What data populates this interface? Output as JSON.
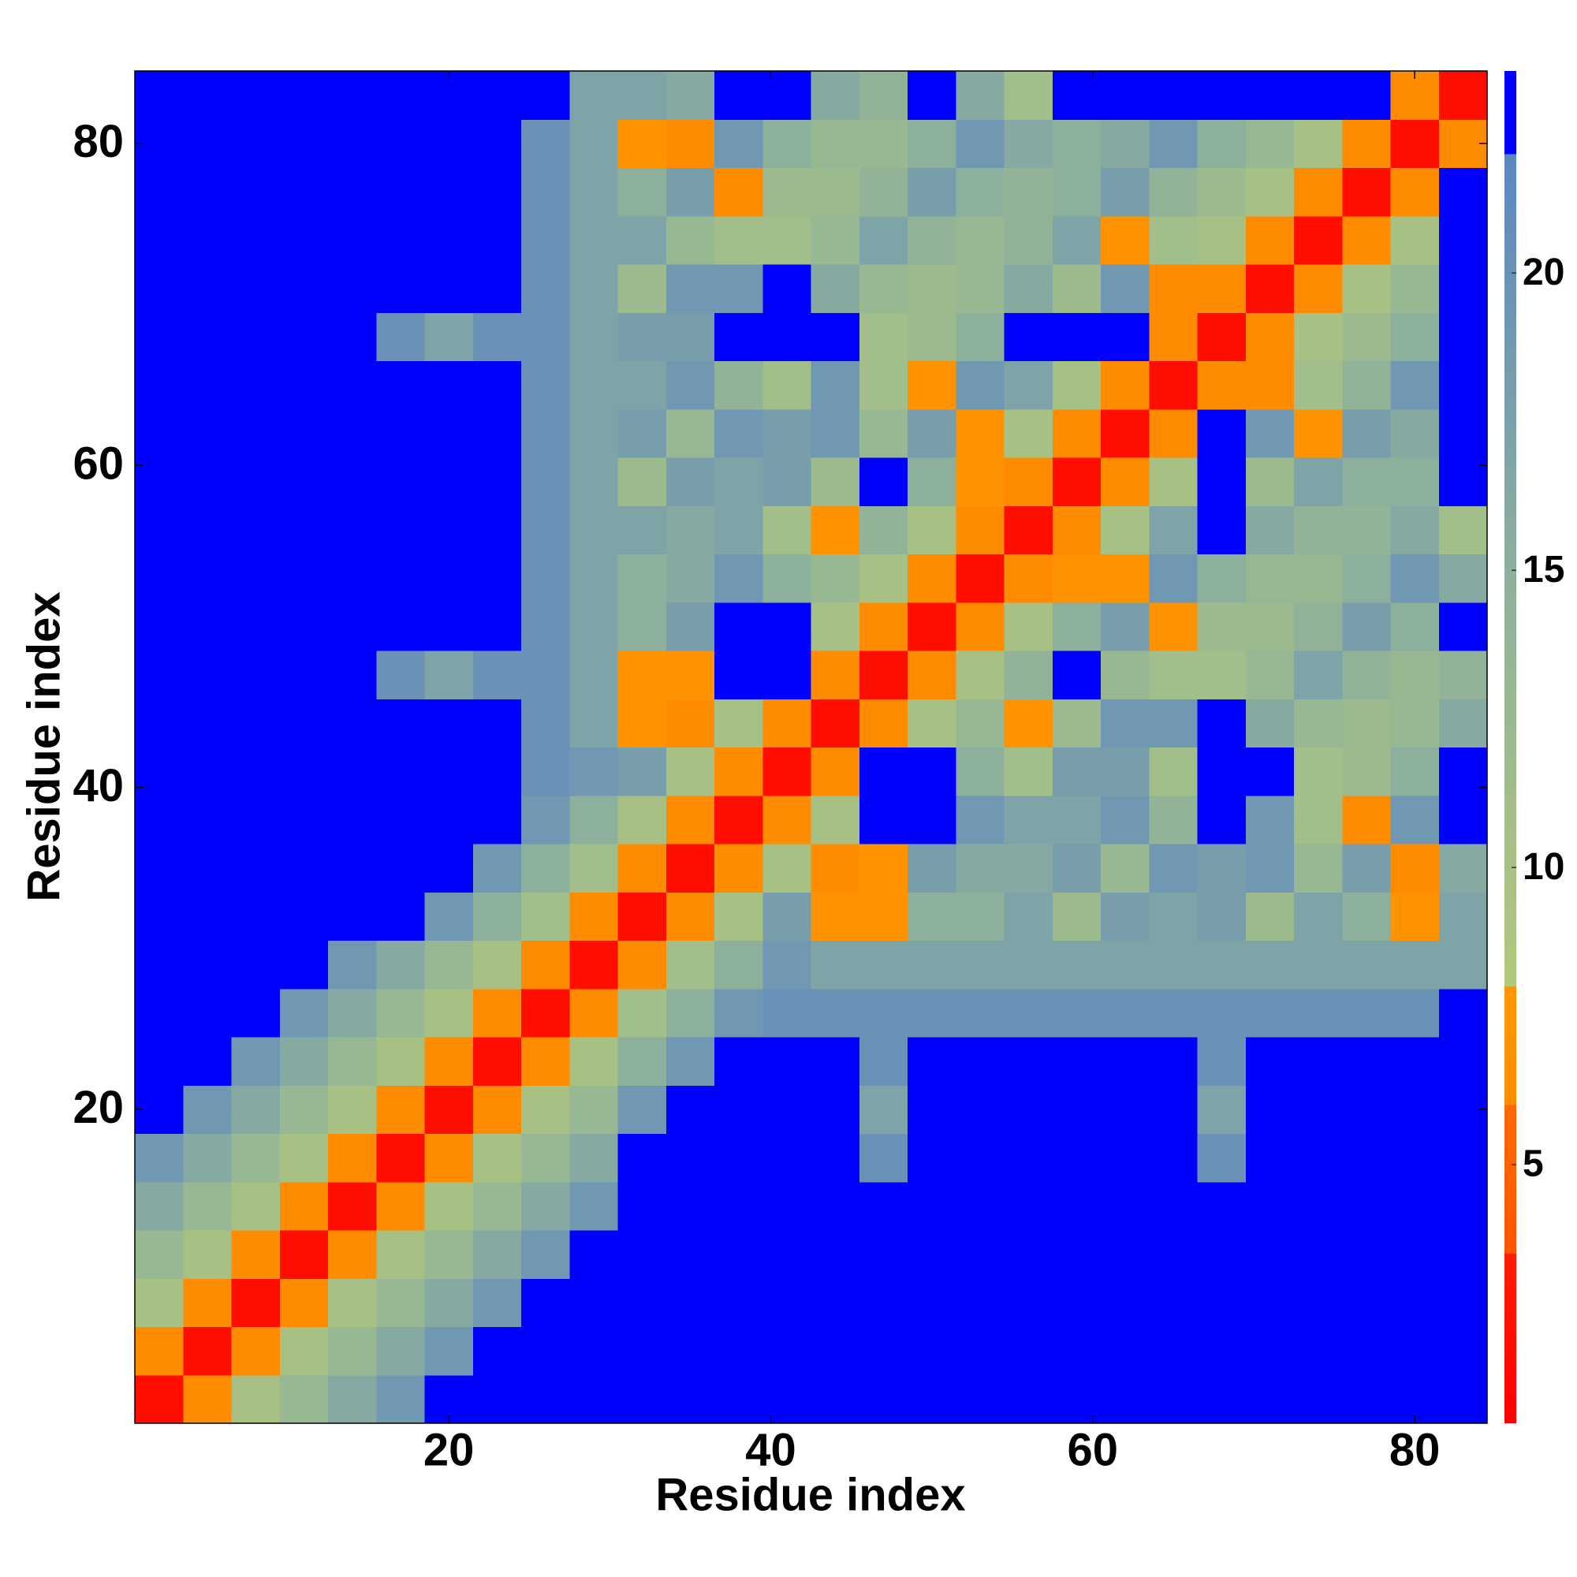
{
  "chart_data": {
    "type": "heatmap",
    "xlabel": "Residue index",
    "ylabel": "Residue index",
    "x": [
      2,
      5,
      8,
      11,
      14,
      17,
      20,
      23,
      26,
      29,
      32,
      35,
      38,
      41,
      44,
      47,
      50,
      53,
      56,
      59,
      62,
      65,
      68,
      71,
      74,
      77,
      80,
      83
    ],
    "y": [
      2,
      5,
      8,
      11,
      14,
      17,
      20,
      23,
      26,
      29,
      32,
      35,
      38,
      41,
      44,
      47,
      50,
      53,
      56,
      59,
      62,
      65,
      68,
      71,
      74,
      77,
      80,
      83
    ],
    "z": [
      [
        2,
        6,
        10,
        13,
        16,
        19,
        23,
        23,
        23,
        23,
        23,
        23,
        23,
        23,
        23,
        23,
        23,
        23,
        23,
        23,
        23,
        23,
        23,
        23,
        23,
        23,
        23,
        23
      ],
      [
        6,
        2,
        6,
        10,
        13,
        16,
        19,
        23,
        23,
        23,
        23,
        23,
        23,
        23,
        23,
        23,
        23,
        23,
        23,
        23,
        23,
        23,
        23,
        23,
        23,
        23,
        23,
        23
      ],
      [
        10,
        6,
        2,
        6,
        10,
        13,
        16,
        19,
        23,
        23,
        23,
        23,
        23,
        23,
        23,
        23,
        23,
        23,
        23,
        23,
        23,
        23,
        23,
        23,
        23,
        23,
        23,
        23
      ],
      [
        13,
        10,
        6,
        2,
        6,
        10,
        13,
        16,
        19,
        23,
        23,
        23,
        23,
        23,
        23,
        23,
        23,
        23,
        23,
        23,
        23,
        23,
        23,
        23,
        23,
        23,
        23,
        23
      ],
      [
        16,
        13,
        10,
        6,
        2,
        6,
        10,
        13,
        16,
        19,
        23,
        23,
        23,
        23,
        23,
        23,
        23,
        23,
        23,
        23,
        23,
        23,
        23,
        23,
        23,
        23,
        23,
        23
      ],
      [
        19,
        16,
        13,
        10,
        6,
        2,
        6,
        10,
        13,
        16,
        23,
        23,
        23,
        23,
        23,
        20,
        23,
        23,
        23,
        23,
        23,
        23,
        20,
        23,
        23,
        23,
        23,
        23
      ],
      [
        23,
        19,
        16,
        13,
        10,
        6,
        2,
        6,
        10,
        13,
        19,
        23,
        23,
        23,
        23,
        17,
        23,
        23,
        23,
        23,
        23,
        23,
        17,
        23,
        23,
        23,
        23,
        23
      ],
      [
        23,
        23,
        19,
        16,
        13,
        10,
        6,
        2,
        6,
        10,
        15,
        19,
        23,
        23,
        23,
        20,
        23,
        23,
        23,
        23,
        23,
        23,
        20,
        23,
        23,
        23,
        23,
        23
      ],
      [
        23,
        23,
        23,
        19,
        16,
        13,
        10,
        6,
        2,
        6,
        11,
        15,
        19,
        20,
        20,
        20,
        20,
        20,
        20,
        20,
        20,
        20,
        20,
        20,
        20,
        20,
        20,
        23
      ],
      [
        23,
        23,
        23,
        23,
        19,
        16,
        13,
        10,
        6,
        2,
        6,
        11,
        15,
        19,
        17,
        17,
        17,
        17,
        17,
        17,
        17,
        17,
        17,
        17,
        17,
        17,
        17,
        17
      ],
      [
        23,
        23,
        23,
        23,
        23,
        23,
        19,
        15,
        11,
        6,
        2,
        6,
        10,
        18,
        7,
        7,
        15,
        15,
        17,
        12,
        18,
        17,
        18,
        12,
        17,
        15,
        7,
        17
      ],
      [
        23,
        23,
        23,
        23,
        23,
        23,
        23,
        19,
        15,
        11,
        6,
        2,
        6,
        10,
        6,
        7,
        18,
        16,
        16,
        18,
        13,
        19,
        18,
        19,
        13,
        18,
        6,
        16
      ],
      [
        23,
        23,
        23,
        23,
        23,
        23,
        23,
        23,
        19,
        15,
        10,
        6,
        2,
        6,
        10,
        23,
        23,
        19,
        17,
        17,
        19,
        14,
        23,
        19,
        11,
        6,
        19,
        23
      ],
      [
        23,
        23,
        23,
        23,
        23,
        23,
        23,
        23,
        20,
        19,
        18,
        10,
        6,
        2,
        6,
        23,
        23,
        15,
        11,
        18,
        18,
        11,
        23,
        23,
        11,
        12,
        15,
        23
      ],
      [
        23,
        23,
        23,
        23,
        23,
        23,
        23,
        23,
        20,
        17,
        7,
        6,
        10,
        6,
        2,
        6,
        10,
        13,
        7,
        12,
        19,
        19,
        23,
        16,
        13,
        12,
        13,
        16
      ],
      [
        23,
        23,
        23,
        23,
        23,
        20,
        17,
        20,
        20,
        17,
        7,
        7,
        23,
        23,
        6,
        2,
        6,
        10,
        14,
        23,
        13,
        11,
        11,
        13,
        17,
        14,
        13,
        14
      ],
      [
        23,
        23,
        23,
        23,
        23,
        23,
        23,
        23,
        20,
        17,
        15,
        18,
        23,
        23,
        10,
        6,
        2,
        6,
        10,
        15,
        18,
        7,
        12,
        12,
        14,
        18,
        15,
        23
      ],
      [
        23,
        23,
        23,
        23,
        23,
        23,
        23,
        23,
        20,
        17,
        15,
        16,
        19,
        15,
        13,
        10,
        6,
        2,
        6,
        7,
        7,
        19,
        15,
        13,
        13,
        15,
        19,
        16
      ],
      [
        23,
        23,
        23,
        23,
        23,
        23,
        23,
        23,
        20,
        17,
        17,
        16,
        17,
        11,
        7,
        14,
        10,
        6,
        2,
        6,
        10,
        17,
        23,
        16,
        14,
        14,
        16,
        11
      ],
      [
        23,
        23,
        23,
        23,
        23,
        23,
        23,
        23,
        20,
        17,
        12,
        18,
        17,
        18,
        12,
        23,
        15,
        7,
        6,
        2,
        6,
        10,
        23,
        12,
        17,
        15,
        15,
        23
      ],
      [
        23,
        23,
        23,
        23,
        23,
        23,
        23,
        23,
        20,
        17,
        18,
        13,
        19,
        18,
        19,
        13,
        18,
        7,
        10,
        6,
        2,
        6,
        23,
        19,
        7,
        18,
        16,
        23
      ],
      [
        23,
        23,
        23,
        23,
        23,
        23,
        23,
        23,
        20,
        17,
        17,
        19,
        14,
        11,
        19,
        11,
        7,
        19,
        17,
        10,
        6,
        2,
        6,
        6,
        11,
        14,
        19,
        23
      ],
      [
        23,
        23,
        23,
        23,
        23,
        20,
        17,
        20,
        20,
        17,
        18,
        18,
        23,
        23,
        23,
        11,
        12,
        15,
        23,
        23,
        23,
        6,
        2,
        6,
        10,
        12,
        15,
        23
      ],
      [
        23,
        23,
        23,
        23,
        23,
        23,
        23,
        23,
        20,
        17,
        12,
        19,
        19,
        23,
        16,
        13,
        12,
        13,
        16,
        12,
        19,
        6,
        6,
        2,
        6,
        10,
        13,
        23
      ],
      [
        23,
        23,
        23,
        23,
        23,
        23,
        23,
        23,
        20,
        17,
        17,
        13,
        11,
        11,
        13,
        17,
        14,
        13,
        14,
        17,
        7,
        11,
        10,
        6,
        2,
        6,
        10,
        23
      ],
      [
        23,
        23,
        23,
        23,
        23,
        23,
        23,
        23,
        20,
        17,
        15,
        18,
        6,
        12,
        12,
        14,
        18,
        15,
        14,
        15,
        18,
        14,
        12,
        10,
        6,
        2,
        6,
        23
      ],
      [
        23,
        23,
        23,
        23,
        23,
        23,
        23,
        23,
        20,
        17,
        7,
        6,
        19,
        15,
        13,
        13,
        15,
        19,
        16,
        15,
        16,
        19,
        15,
        13,
        10,
        6,
        2,
        6
      ],
      [
        23,
        23,
        23,
        23,
        23,
        23,
        23,
        23,
        23,
        17,
        17,
        16,
        23,
        23,
        16,
        14,
        23,
        16,
        11,
        23,
        23,
        23,
        23,
        23,
        23,
        23,
        6,
        2
      ]
    ],
    "xlim": [
      0.5,
      84.5
    ],
    "ylim": [
      0.5,
      84.5
    ],
    "xticks": [
      20,
      40,
      60,
      80
    ],
    "yticks": [
      20,
      40,
      60,
      80
    ],
    "colorscale": [
      [
        0.65,
        "#ff0000"
      ],
      [
        3.5,
        "#ff1c00"
      ],
      [
        3.5,
        "#ff5500"
      ],
      [
        6,
        "#ff6a00"
      ],
      [
        6,
        "#ff8c00"
      ],
      [
        8,
        "#ff9800"
      ],
      [
        8,
        "#b2c87c"
      ],
      [
        15,
        "#8db09c"
      ],
      [
        22,
        "#5c86c2"
      ],
      [
        22,
        "#0000ff"
      ],
      [
        23.4,
        "#0000ff"
      ]
    ],
    "colorbar": {
      "lim": [
        0.65,
        23.4
      ],
      "ticks": [
        5,
        10,
        15,
        20
      ]
    }
  }
}
